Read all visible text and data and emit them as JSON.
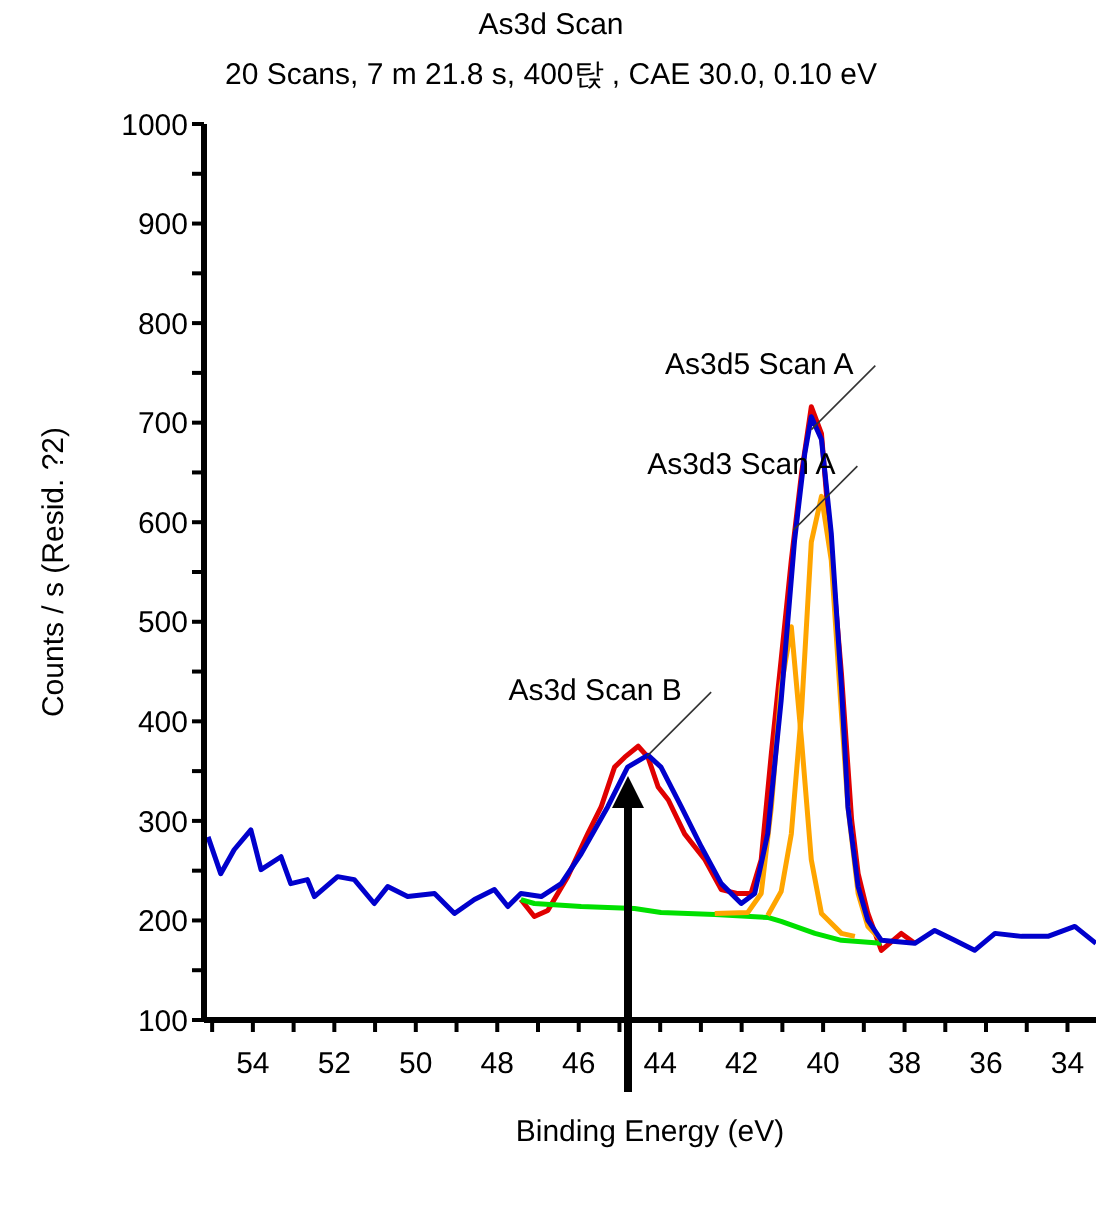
{
  "chart_data": {
    "type": "line",
    "title": "As3d Scan",
    "subtitle": "20 Scans,  7 m 21.8 s,  400탅 ,  CAE 30.0,  0.10 eV",
    "xlabel": "Binding Energy (eV)",
    "ylabel": "Counts / s  (Resid. ?2)",
    "xlim": [
      55.2,
      33.3
    ],
    "xticks": [
      {
        "value": 55,
        "label": null
      },
      54,
      {
        "value": 53,
        "label": null
      },
      52,
      {
        "value": 51,
        "label": null
      },
      50,
      {
        "value": 49,
        "label": null
      },
      48,
      {
        "value": 47,
        "label": null
      },
      46,
      {
        "value": 45,
        "label": null
      },
      44,
      {
        "value": 43,
        "label": null
      },
      42,
      {
        "value": 41,
        "label": null
      },
      40,
      {
        "value": 39,
        "label": null
      },
      38,
      {
        "value": 37,
        "label": null
      },
      36,
      {
        "value": 35,
        "label": null
      },
      34
    ],
    "ylim": [
      100,
      1000
    ],
    "yticks": [
      100,
      {
        "value": 150,
        "label": null
      },
      200,
      {
        "value": 250,
        "label": null
      },
      300,
      {
        "value": 350,
        "label": null
      },
      400,
      {
        "value": 450,
        "label": null
      },
      500,
      {
        "value": 550,
        "label": null
      },
      600,
      {
        "value": 650,
        "label": null
      },
      700,
      {
        "value": 750,
        "label": null
      },
      800,
      {
        "value": 850,
        "label": null
      },
      900,
      {
        "value": 950,
        "label": null
      },
      1000
    ],
    "marker": "none",
    "line_style": "solid",
    "series": [
      {
        "color": "#e00000",
        "x": [
          47.42,
          47.09,
          46.76,
          46.27,
          45.78,
          45.45,
          45.12,
          44.87,
          44.54,
          44.3,
          44.05,
          43.8,
          43.4,
          42.9,
          42.5,
          42.09,
          41.77,
          41.52,
          41.27,
          41.03,
          40.78,
          40.53,
          40.29,
          40.04,
          39.8,
          39.55,
          39.3,
          39.14,
          38.9,
          38.57,
          38.08,
          37.75
        ],
        "values": [
          221,
          204,
          210,
          244,
          287,
          314,
          354,
          364,
          375,
          364,
          334,
          321,
          287,
          261,
          231,
          227,
          227,
          261,
          368,
          462,
          562,
          649,
          716,
          689,
          569,
          448,
          301,
          247,
          207,
          170,
          187,
          177
        ]
      },
      {
        "color": "#00e000",
        "x": [
          47.42,
          47.09,
          45.94,
          44.63,
          43.98,
          42.66,
          41.36,
          41.03,
          40.2,
          39.55,
          38.57
        ],
        "values": [
          221,
          217,
          214,
          212,
          208,
          206,
          203,
          199,
          187,
          180,
          177
        ]
      },
      {
        "color": "#ffa500",
        "x": [
          41.36,
          41.03,
          40.78,
          40.53,
          40.29,
          40.04,
          39.8,
          39.55,
          39.39,
          39.14,
          38.9,
          38.57
        ],
        "values": [
          205,
          229,
          287,
          410,
          580,
          626,
          562,
          408,
          314,
          227,
          194,
          180
        ]
      },
      {
        "color": "#ffa500",
        "x": [
          42.66,
          41.85,
          41.52,
          41.27,
          41.03,
          40.78,
          40.53,
          40.29,
          40.04,
          39.55,
          39.22
        ],
        "values": [
          207,
          208,
          227,
          314,
          435,
          495,
          381,
          261,
          207,
          187,
          184
        ]
      },
      {
        "color": "#0000cc",
        "x": [
          55.1,
          54.79,
          54.46,
          54.05,
          53.8,
          53.31,
          53.07,
          52.66,
          52.49,
          51.92,
          51.51,
          51.02,
          50.69,
          50.2,
          49.54,
          49.05,
          48.56,
          48.07,
          47.74,
          47.42,
          46.92,
          46.43,
          45.94,
          45.29,
          44.8,
          44.3,
          43.98,
          43.48,
          42.99,
          42.5,
          42.01,
          41.68,
          41.36,
          41.03,
          40.7,
          40.45,
          40.29,
          40.04,
          39.8,
          39.55,
          39.39,
          39.14,
          38.9,
          38.57,
          37.75,
          37.26,
          36.77,
          36.28,
          35.78,
          35.13,
          34.48,
          33.82,
          33.3
        ],
        "values": [
          284,
          247,
          271,
          291,
          251,
          264,
          237,
          241,
          224,
          244,
          241,
          217,
          234,
          224,
          227,
          207,
          221,
          231,
          214,
          227,
          224,
          237,
          267,
          314,
          354,
          366,
          354,
          314,
          274,
          237,
          217,
          227,
          287,
          421,
          582,
          669,
          706,
          683,
          589,
          435,
          314,
          234,
          200,
          180,
          177,
          190,
          180,
          170,
          187,
          184,
          184,
          194,
          177
        ]
      }
    ],
    "annotations": [
      {
        "text": "As3d5 Scan A",
        "x": 40.29,
        "y": 693
      },
      {
        "text": "As3d3 Scan A",
        "x": 40.73,
        "y": 592
      },
      {
        "text": "As3d Scan B",
        "x": 44.32,
        "y": 365
      }
    ]
  }
}
